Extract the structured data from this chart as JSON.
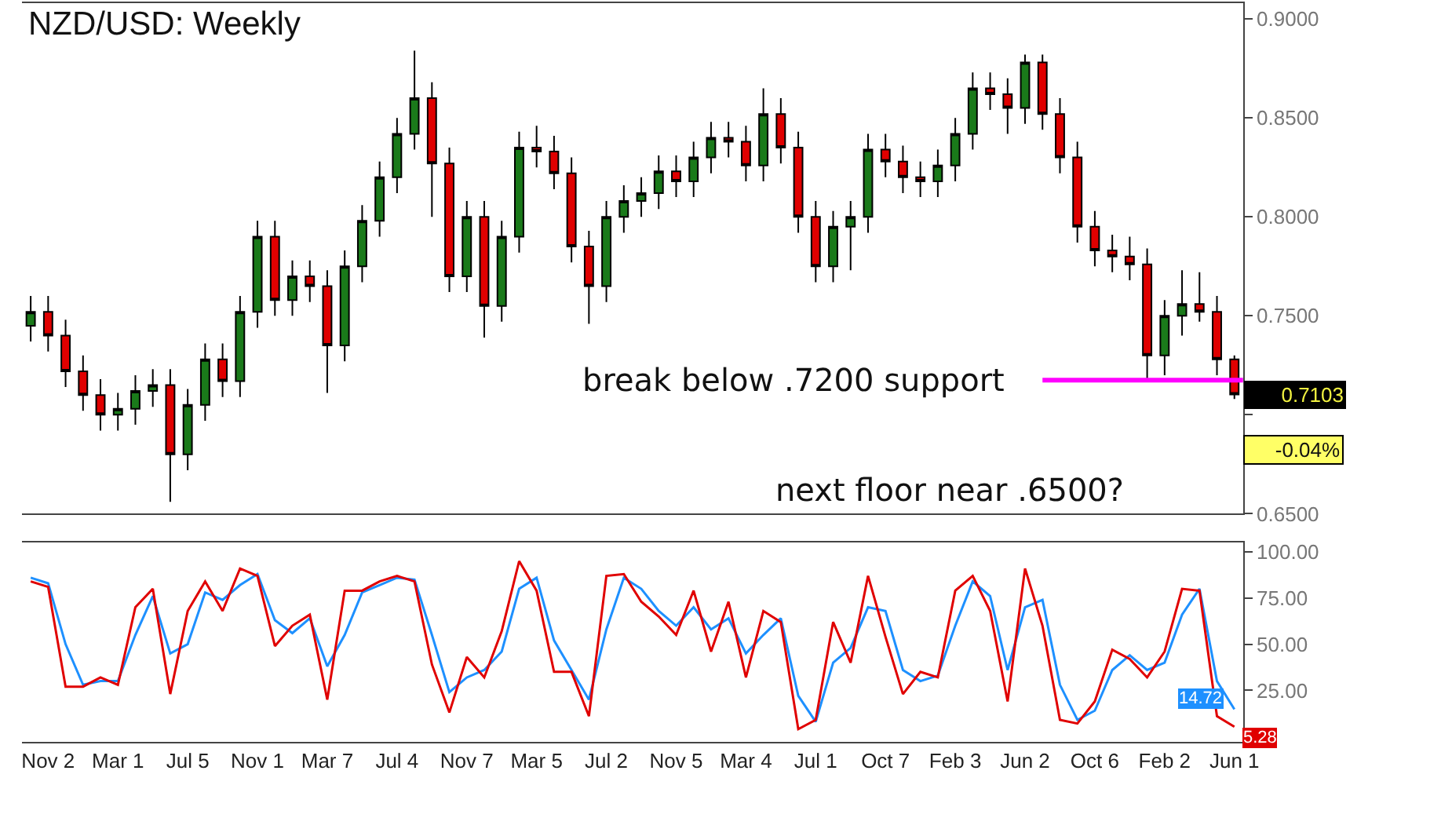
{
  "chart_data": [
    {
      "type": "candlestick",
      "title": "NZD/USD: Weekly",
      "categories": [
        null,
        null,
        null,
        null,
        null,
        null,
        null,
        null,
        null,
        null,
        null,
        null,
        null,
        null,
        null,
        null,
        null,
        null,
        null,
        null,
        null,
        null,
        null,
        null,
        null,
        null,
        null,
        null,
        null,
        null,
        null,
        null,
        null,
        null,
        null,
        null,
        null,
        null,
        null,
        null,
        null,
        null,
        null,
        null,
        null,
        null,
        null,
        null,
        null,
        null,
        null,
        null,
        null,
        null,
        null,
        null,
        null,
        null,
        null,
        null,
        null,
        null,
        null,
        null,
        null,
        null,
        null,
        null,
        null,
        null
      ],
      "ohlc": [
        [
          0.745,
          0.76,
          0.737,
          0.752
        ],
        [
          0.752,
          0.76,
          0.732,
          0.74
        ],
        [
          0.74,
          0.748,
          0.714,
          0.722
        ],
        [
          0.722,
          0.73,
          0.702,
          0.71
        ],
        [
          0.71,
          0.718,
          0.692,
          0.7
        ],
        [
          0.7,
          0.711,
          0.692,
          0.703
        ],
        [
          0.703,
          0.72,
          0.695,
          0.712
        ],
        [
          0.712,
          0.723,
          0.704,
          0.715
        ],
        [
          0.715,
          0.723,
          0.656,
          0.68
        ],
        [
          0.68,
          0.713,
          0.672,
          0.705
        ],
        [
          0.705,
          0.736,
          0.697,
          0.728
        ],
        [
          0.728,
          0.736,
          0.709,
          0.717
        ],
        [
          0.717,
          0.76,
          0.709,
          0.752
        ],
        [
          0.752,
          0.798,
          0.744,
          0.79
        ],
        [
          0.79,
          0.798,
          0.75,
          0.758
        ],
        [
          0.758,
          0.778,
          0.75,
          0.77
        ],
        [
          0.77,
          0.778,
          0.757,
          0.765
        ],
        [
          0.765,
          0.773,
          0.711,
          0.735
        ],
        [
          0.735,
          0.783,
          0.727,
          0.775
        ],
        [
          0.775,
          0.806,
          0.767,
          0.798
        ],
        [
          0.798,
          0.828,
          0.79,
          0.82
        ],
        [
          0.82,
          0.85,
          0.812,
          0.842
        ],
        [
          0.842,
          0.884,
          0.834,
          0.86
        ],
        [
          0.86,
          0.868,
          0.8,
          0.827
        ],
        [
          0.827,
          0.835,
          0.762,
          0.77
        ],
        [
          0.77,
          0.808,
          0.762,
          0.8
        ],
        [
          0.8,
          0.808,
          0.739,
          0.755
        ],
        [
          0.755,
          0.798,
          0.747,
          0.79
        ],
        [
          0.79,
          0.843,
          0.782,
          0.835
        ],
        [
          0.835,
          0.846,
          0.825,
          0.833
        ],
        [
          0.833,
          0.841,
          0.814,
          0.822
        ],
        [
          0.822,
          0.83,
          0.777,
          0.785
        ],
        [
          0.785,
          0.793,
          0.746,
          0.765
        ],
        [
          0.765,
          0.808,
          0.757,
          0.8
        ],
        [
          0.8,
          0.816,
          0.792,
          0.808
        ],
        [
          0.808,
          0.82,
          0.8,
          0.812
        ],
        [
          0.812,
          0.831,
          0.804,
          0.823
        ],
        [
          0.823,
          0.831,
          0.81,
          0.818
        ],
        [
          0.818,
          0.838,
          0.81,
          0.83
        ],
        [
          0.83,
          0.848,
          0.822,
          0.84
        ],
        [
          0.84,
          0.848,
          0.83,
          0.838
        ],
        [
          0.838,
          0.846,
          0.818,
          0.826
        ],
        [
          0.826,
          0.865,
          0.818,
          0.852
        ],
        [
          0.852,
          0.86,
          0.827,
          0.835
        ],
        [
          0.835,
          0.843,
          0.792,
          0.8
        ],
        [
          0.8,
          0.808,
          0.767,
          0.775
        ],
        [
          0.775,
          0.803,
          0.767,
          0.795
        ],
        [
          0.795,
          0.808,
          0.773,
          0.8
        ],
        [
          0.8,
          0.842,
          0.792,
          0.834
        ],
        [
          0.834,
          0.842,
          0.82,
          0.828
        ],
        [
          0.828,
          0.836,
          0.812,
          0.82
        ],
        [
          0.82,
          0.828,
          0.81,
          0.818
        ],
        [
          0.818,
          0.834,
          0.81,
          0.826
        ],
        [
          0.826,
          0.85,
          0.818,
          0.842
        ],
        [
          0.842,
          0.873,
          0.834,
          0.865
        ],
        [
          0.865,
          0.873,
          0.854,
          0.862
        ],
        [
          0.862,
          0.87,
          0.842,
          0.855
        ],
        [
          0.855,
          0.882,
          0.847,
          0.878
        ],
        [
          0.878,
          0.882,
          0.844,
          0.852
        ],
        [
          0.852,
          0.86,
          0.822,
          0.83
        ],
        [
          0.83,
          0.838,
          0.787,
          0.795
        ],
        [
          0.795,
          0.803,
          0.775,
          0.783
        ],
        [
          0.783,
          0.791,
          0.772,
          0.78
        ],
        [
          0.78,
          0.79,
          0.768,
          0.776
        ],
        [
          0.776,
          0.784,
          0.718,
          0.73
        ],
        [
          0.73,
          0.758,
          0.72,
          0.75
        ],
        [
          0.75,
          0.773,
          0.74,
          0.756
        ],
        [
          0.756,
          0.772,
          0.747,
          0.752
        ],
        [
          0.752,
          0.76,
          0.72,
          0.728
        ],
        [
          0.728,
          0.73,
          0.708,
          0.7103
        ]
      ],
      "colors": [
        "#1a7a1a",
        "#e00000",
        "#e00000",
        "#e00000",
        "#e00000",
        "#1a7a1a",
        "#1a7a1a",
        "#1a7a1a",
        "#e00000",
        "#1a7a1a",
        "#1a7a1a",
        "#e00000",
        "#1a7a1a",
        "#1a7a1a",
        "#e00000",
        "#1a7a1a",
        "#e00000",
        "#e00000",
        "#1a7a1a",
        "#1a7a1a",
        "#1a7a1a",
        "#1a7a1a",
        "#1a7a1a",
        "#e00000",
        "#e00000",
        "#1a7a1a",
        "#e00000",
        "#1a7a1a",
        "#1a7a1a",
        "#e00000",
        "#e00000",
        "#e00000",
        "#e00000",
        "#1a7a1a",
        "#1a7a1a",
        "#1a7a1a",
        "#1a7a1a",
        "#e00000",
        "#1a7a1a",
        "#1a7a1a",
        "#e00000",
        "#e00000",
        "#1a7a1a",
        "#e00000",
        "#e00000",
        "#e00000",
        "#1a7a1a",
        "#1a7a1a",
        "#1a7a1a",
        "#e00000",
        "#e00000",
        "#e00000",
        "#1a7a1a",
        "#1a7a1a",
        "#1a7a1a",
        "#e00000",
        "#e00000",
        "#1a7a1a",
        "#e00000",
        "#e00000",
        "#e00000",
        "#e00000",
        "#e00000",
        "#e00000",
        "#e00000",
        "#1a7a1a",
        "#1a7a1a",
        "#e00000",
        "#e00000",
        "#e00000"
      ],
      "value_labels": [
        null,
        null,
        null,
        null,
        null,
        null,
        null,
        null,
        null,
        null,
        null,
        null,
        null,
        null,
        null,
        null,
        null,
        null,
        null,
        null,
        null,
        null,
        null,
        null,
        null,
        null,
        null,
        null,
        null,
        null,
        null,
        null,
        null,
        null,
        null,
        null,
        null,
        null,
        null,
        null,
        null,
        null,
        null,
        null,
        null,
        null,
        null,
        null,
        null,
        null,
        null,
        null,
        null,
        null,
        null,
        null,
        null,
        null,
        null,
        null,
        null,
        null,
        null,
        null,
        null,
        null,
        null,
        null,
        null,
        "0.7103"
      ],
      "ylim": [
        0.65,
        0.908
      ],
      "yticks": [
        {
          "value": 0.65,
          "label": "0.6500"
        },
        {
          "value": 0.7,
          "label": null
        },
        {
          "value": 0.75,
          "label": "0.7500"
        },
        {
          "value": 0.8,
          "label": "0.8000"
        },
        {
          "value": 0.85,
          "label": "0.8500"
        },
        {
          "value": 0.9,
          "label": "0.9000"
        }
      ],
      "ref_lines": [
        {
          "axis": "y",
          "value": 0.7175,
          "label": "break below .7200 support",
          "color": "#ff00ff"
        }
      ],
      "annotations": [
        "next floor near .6500?",
        "-0.04%"
      ],
      "tick_labels": "y"
    },
    {
      "type": "line",
      "categories": [
        null,
        "Nov 2",
        null,
        null,
        null,
        "Mar 1",
        null,
        null,
        null,
        "Jul 5",
        null,
        null,
        null,
        "Nov 1",
        null,
        null,
        null,
        "Mar 7",
        null,
        null,
        null,
        "Jul 4",
        null,
        null,
        null,
        "Nov 7",
        null,
        null,
        null,
        "Mar 5",
        null,
        null,
        null,
        "Jul 2",
        null,
        null,
        null,
        "Nov 5",
        null,
        null,
        null,
        "Mar 4",
        null,
        null,
        null,
        "Jul 1",
        null,
        null,
        null,
        "Oct 7",
        null,
        null,
        null,
        "Feb 3",
        null,
        null,
        null,
        "Jun 2",
        null,
        null,
        null,
        "Oct 6",
        null,
        null,
        null,
        "Feb 2",
        null,
        null,
        null,
        "Jun 1"
      ],
      "series": [
        {
          "color": "#1e90ff",
          "values": [
            86,
            83,
            50,
            28,
            30,
            30,
            55,
            76,
            45,
            50,
            78,
            74,
            82,
            88,
            63,
            56,
            64,
            38,
            55,
            78,
            82,
            86,
            85,
            55,
            24,
            32,
            36,
            46,
            80,
            86,
            52,
            36,
            20,
            58,
            86,
            80,
            68,
            60,
            70,
            58,
            64,
            45,
            55,
            64,
            22,
            8,
            40,
            48,
            70,
            68,
            36,
            30,
            33,
            60,
            84,
            76,
            36,
            70,
            74,
            28,
            9,
            14,
            36,
            44,
            36,
            40,
            66,
            80,
            30,
            14.72
          ],
          "value_labels": [
            null,
            null,
            null,
            null,
            null,
            null,
            null,
            null,
            null,
            null,
            null,
            null,
            null,
            null,
            null,
            null,
            null,
            null,
            null,
            null,
            null,
            null,
            null,
            null,
            null,
            null,
            null,
            null,
            null,
            null,
            null,
            null,
            null,
            null,
            null,
            null,
            null,
            null,
            null,
            null,
            null,
            null,
            null,
            null,
            null,
            null,
            null,
            null,
            null,
            null,
            null,
            null,
            null,
            null,
            null,
            null,
            null,
            null,
            null,
            null,
            null,
            null,
            null,
            null,
            null,
            null,
            null,
            null,
            null,
            "14.72"
          ]
        },
        {
          "color": "#e00000",
          "values": [
            84,
            81,
            27,
            27,
            32,
            28,
            70,
            80,
            23,
            68,
            84,
            68,
            91,
            87,
            49,
            60,
            66,
            20,
            79,
            79,
            84,
            87,
            84,
            39,
            13,
            43,
            32,
            57,
            95,
            79,
            35,
            35,
            11,
            87,
            88,
            73,
            65,
            55,
            79,
            46,
            73,
            32,
            68,
            62,
            4,
            9,
            62,
            40,
            87,
            54,
            23,
            35,
            32,
            79,
            87,
            68,
            19,
            91,
            60,
            9,
            7,
            19,
            47,
            42,
            32,
            46,
            80,
            79,
            11,
            5.28
          ],
          "value_labels": [
            null,
            null,
            null,
            null,
            null,
            null,
            null,
            null,
            null,
            null,
            null,
            null,
            null,
            null,
            null,
            null,
            null,
            null,
            null,
            null,
            null,
            null,
            null,
            null,
            null,
            null,
            null,
            null,
            null,
            null,
            null,
            null,
            null,
            null,
            null,
            null,
            null,
            null,
            null,
            null,
            null,
            null,
            null,
            null,
            null,
            null,
            null,
            null,
            null,
            null,
            null,
            null,
            null,
            null,
            null,
            null,
            null,
            null,
            null,
            null,
            null,
            null,
            null,
            null,
            null,
            null,
            null,
            null,
            null,
            "5.28"
          ]
        }
      ],
      "ylim": [
        -3,
        105
      ],
      "yticks": [
        {
          "value": 25,
          "label": "25.00"
        },
        {
          "value": 50,
          "label": "50.00"
        },
        {
          "value": 75,
          "label": "75.00"
        },
        {
          "value": 100,
          "label": "100.00"
        }
      ]
    }
  ]
}
